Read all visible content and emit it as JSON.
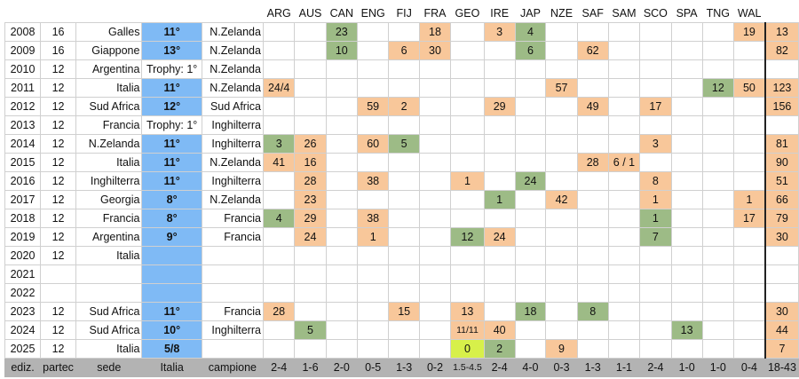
{
  "header": {
    "teams": [
      "ARG",
      "AUS",
      "CAN",
      "ENG",
      "FIJ",
      "FRA",
      "GEO",
      "IRE",
      "JAP",
      "NZE",
      "SAF",
      "SAM",
      "SCO",
      "SPA",
      "TNG",
      "WAL"
    ]
  },
  "rows": [
    {
      "year": "2008",
      "part": "16",
      "sede": "Galles",
      "italia": "11°",
      "campione": "N.Zelanda",
      "cells": [
        "",
        "",
        "23",
        "",
        "",
        "18",
        "",
        "3",
        "4",
        "",
        "",
        "",
        "",
        "",
        "",
        "19"
      ],
      "colors": [
        "",
        "",
        "g",
        "",
        "",
        "o",
        "",
        "o",
        "g",
        "",
        "",
        "",
        "",
        "",
        "",
        "o"
      ],
      "total": "13"
    },
    {
      "year": "2009",
      "part": "16",
      "sede": "Giappone",
      "italia": "13°",
      "campione": "N.Zelanda",
      "cells": [
        "",
        "",
        "10",
        "",
        "6",
        "30",
        "",
        "",
        "6",
        "",
        "62",
        "",
        "",
        "",
        "",
        ""
      ],
      "colors": [
        "",
        "",
        "g",
        "",
        "o",
        "o",
        "",
        "",
        "g",
        "",
        "o",
        "",
        "",
        "",
        "",
        ""
      ],
      "total": "82"
    },
    {
      "year": "2010",
      "part": "12",
      "sede": "Argentina",
      "italia": "Trophy: 1°",
      "campione": "N.Zelanda",
      "cells": [
        "",
        "",
        "",
        "",
        "",
        "",
        "",
        "",
        "",
        "",
        "",
        "",
        "",
        "",
        "",
        ""
      ],
      "colors": [
        "",
        "",
        "",
        "",
        "",
        "",
        "",
        "",
        "",
        "",
        "",
        "",
        "",
        "",
        "",
        ""
      ],
      "total": ""
    },
    {
      "year": "2011",
      "part": "12",
      "sede": "Italia",
      "italia": "11°",
      "campione": "N.Zelanda",
      "cells": [
        "24/4",
        "",
        "",
        "",
        "",
        "",
        "",
        "",
        "",
        "57",
        "",
        "",
        "",
        "",
        "12",
        "50"
      ],
      "colors": [
        "o",
        "",
        "",
        "",
        "",
        "",
        "",
        "",
        "",
        "o",
        "",
        "",
        "",
        "",
        "g",
        "o"
      ],
      "total": "123"
    },
    {
      "year": "2012",
      "part": "12",
      "sede": "Sud Africa",
      "italia": "12°",
      "campione": "Sud Africa",
      "cells": [
        "",
        "",
        "",
        "59",
        "2",
        "",
        "",
        "29",
        "",
        "",
        "49",
        "",
        "17",
        "",
        "",
        ""
      ],
      "colors": [
        "",
        "",
        "",
        "o",
        "o",
        "",
        "",
        "o",
        "",
        "",
        "o",
        "",
        "o",
        "",
        "",
        ""
      ],
      "total": "156"
    },
    {
      "year": "2013",
      "part": "12",
      "sede": "Francia",
      "italia": "Trophy: 1°",
      "campione": "Inghilterra",
      "cells": [
        "",
        "",
        "",
        "",
        "",
        "",
        "",
        "",
        "",
        "",
        "",
        "",
        "",
        "",
        "",
        ""
      ],
      "colors": [
        "",
        "",
        "",
        "",
        "",
        "",
        "",
        "",
        "",
        "",
        "",
        "",
        "",
        "",
        "",
        ""
      ],
      "total": ""
    },
    {
      "year": "2014",
      "part": "12",
      "sede": "N.Zelanda",
      "italia": "11°",
      "campione": "Inghilterra",
      "cells": [
        "3",
        "26",
        "",
        "60",
        "5",
        "",
        "",
        "",
        "",
        "",
        "",
        "",
        "3",
        "",
        "",
        ""
      ],
      "colors": [
        "g",
        "o",
        "",
        "o",
        "g",
        "",
        "",
        "",
        "",
        "",
        "",
        "",
        "o",
        "",
        "",
        ""
      ],
      "total": "81"
    },
    {
      "year": "2015",
      "part": "12",
      "sede": "Italia",
      "italia": "11°",
      "campione": "N.Zelanda",
      "cells": [
        "41",
        "16",
        "",
        "",
        "",
        "",
        "",
        "",
        "",
        "",
        "28",
        "6 / 1",
        "",
        "",
        "",
        ""
      ],
      "colors": [
        "o",
        "o",
        "",
        "",
        "",
        "",
        "",
        "",
        "",
        "",
        "o",
        "o",
        "",
        "",
        "",
        ""
      ],
      "total": "90"
    },
    {
      "year": "2016",
      "part": "12",
      "sede": "Inghilterra",
      "italia": "11°",
      "campione": "Inghilterra",
      "cells": [
        "",
        "28",
        "",
        "38",
        "",
        "",
        "1",
        "",
        "24",
        "",
        "",
        "",
        "8",
        "",
        "",
        ""
      ],
      "colors": [
        "",
        "o",
        "",
        "o",
        "",
        "",
        "o",
        "",
        "g",
        "",
        "",
        "",
        "o",
        "",
        "",
        ""
      ],
      "total": "51"
    },
    {
      "year": "2017",
      "part": "12",
      "sede": "Georgia",
      "italia": "8°",
      "campione": "N.Zelanda",
      "cells": [
        "",
        "23",
        "",
        "",
        "",
        "",
        "",
        "1",
        "",
        "42",
        "",
        "",
        "1",
        "",
        "",
        "1"
      ],
      "colors": [
        "",
        "o",
        "",
        "",
        "",
        "",
        "",
        "g",
        "",
        "o",
        "",
        "",
        "o",
        "",
        "",
        "o"
      ],
      "total": "66"
    },
    {
      "year": "2018",
      "part": "12",
      "sede": "Francia",
      "italia": "8°",
      "campione": "Francia",
      "cells": [
        "4",
        "29",
        "",
        "38",
        "",
        "",
        "",
        "",
        "",
        "",
        "",
        "",
        "1",
        "",
        "",
        "17"
      ],
      "colors": [
        "g",
        "o",
        "",
        "o",
        "",
        "",
        "",
        "",
        "",
        "",
        "",
        "",
        "g",
        "",
        "",
        "o"
      ],
      "total": "79"
    },
    {
      "year": "2019",
      "part": "12",
      "sede": "Argentina",
      "italia": "9°",
      "campione": "Francia",
      "cells": [
        "",
        "24",
        "",
        "1",
        "",
        "",
        "12",
        "24",
        "",
        "",
        "",
        "",
        "7",
        "",
        "",
        ""
      ],
      "colors": [
        "",
        "o",
        "",
        "o",
        "",
        "",
        "g",
        "o",
        "",
        "",
        "",
        "",
        "g",
        "",
        "",
        ""
      ],
      "total": "30"
    },
    {
      "year": "2020",
      "part": "12",
      "sede": "Italia",
      "italia": "",
      "campione": "",
      "cells": [
        "",
        "",
        "",
        "",
        "",
        "",
        "",
        "",
        "",
        "",
        "",
        "",
        "",
        "",
        "",
        ""
      ],
      "colors": [
        "",
        "",
        "",
        "",
        "",
        "",
        "",
        "",
        "",
        "",
        "",
        "",
        "",
        "",
        "",
        ""
      ],
      "total": ""
    },
    {
      "year": "2021",
      "part": "",
      "sede": "",
      "italia": "",
      "campione": "",
      "cells": [
        "",
        "",
        "",
        "",
        "",
        "",
        "",
        "",
        "",
        "",
        "",
        "",
        "",
        "",
        "",
        ""
      ],
      "colors": [
        "",
        "",
        "",
        "",
        "",
        "",
        "",
        "",
        "",
        "",
        "",
        "",
        "",
        "",
        "",
        ""
      ],
      "total": ""
    },
    {
      "year": "2022",
      "part": "",
      "sede": "",
      "italia": "",
      "campione": "",
      "cells": [
        "",
        "",
        "",
        "",
        "",
        "",
        "",
        "",
        "",
        "",
        "",
        "",
        "",
        "",
        "",
        ""
      ],
      "colors": [
        "",
        "",
        "",
        "",
        "",
        "",
        "",
        "",
        "",
        "",
        "",
        "",
        "",
        "",
        "",
        ""
      ],
      "total": ""
    },
    {
      "year": "2023",
      "part": "12",
      "sede": "Sud Africa",
      "italia": "11°",
      "campione": "Francia",
      "cells": [
        "28",
        "",
        "",
        "",
        "15",
        "",
        "13",
        "",
        "18",
        "",
        "8",
        "",
        "",
        "",
        "",
        ""
      ],
      "colors": [
        "o",
        "",
        "",
        "",
        "o",
        "",
        "o",
        "",
        "g",
        "",
        "g",
        "",
        "",
        "",
        "",
        ""
      ],
      "total": "30"
    },
    {
      "year": "2024",
      "part": "12",
      "sede": "Sud Africa",
      "italia": "10°",
      "campione": "Inghilterra",
      "cells": [
        "",
        "5",
        "",
        "",
        "",
        "",
        "11/11",
        "40",
        "",
        "",
        "",
        "",
        "",
        "13",
        "",
        ""
      ],
      "colors": [
        "",
        "g",
        "",
        "",
        "",
        "",
        "o",
        "o",
        "",
        "",
        "",
        "",
        "",
        "g",
        "",
        ""
      ],
      "total": "44"
    },
    {
      "year": "2025",
      "part": "12",
      "sede": "Italia",
      "italia": "5/8",
      "campione": "",
      "cells": [
        "",
        "",
        "",
        "",
        "",
        "",
        "0",
        "2",
        "",
        "9",
        "",
        "",
        "",
        "",
        "",
        ""
      ],
      "colors": [
        "",
        "",
        "",
        "",
        "",
        "",
        "y",
        "g",
        "",
        "o",
        "",
        "",
        "",
        "",
        "",
        ""
      ],
      "total": "7"
    }
  ],
  "footer": {
    "labels": [
      "ediz.",
      "partec",
      "sede",
      "Italia",
      "campione"
    ],
    "records": [
      "2-4",
      "1-6",
      "2-0",
      "0-5",
      "1-3",
      "0-2",
      "1.5-4.5",
      "2-4",
      "4-0",
      "0-3",
      "1-3",
      "1-1",
      "2-4",
      "1-0",
      "1-0",
      "0-4"
    ],
    "total": "18-43"
  },
  "colors": {
    "italia_bg": "#7fbaf5",
    "loss_bg": "#f8c79a",
    "win_bg": "#9dbb86",
    "draw_bg": "#d7f04a",
    "footer_bg": "#b3b3b3"
  }
}
